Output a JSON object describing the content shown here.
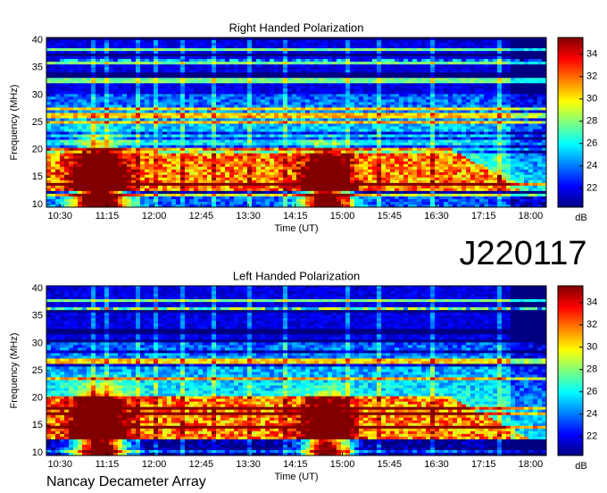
{
  "figure_label": "J220117",
  "footer": "Nancay Decameter Array",
  "chart_data": [
    {
      "type": "spectrogram",
      "title": "Right Handed Polarization",
      "x_label": "Time (UT)",
      "y_label": "Frequency (MHz)",
      "xlim": [
        617,
        1095
      ],
      "xticks": [
        {
          "value": 630,
          "label": "10:30"
        },
        {
          "value": 675,
          "label": "11:15"
        },
        {
          "value": 720,
          "label": "12:00"
        },
        {
          "value": 765,
          "label": "12:45"
        },
        {
          "value": 810,
          "label": "13:30"
        },
        {
          "value": 855,
          "label": "14:15"
        },
        {
          "value": 900,
          "label": "15:00"
        },
        {
          "value": 945,
          "label": "15:45"
        },
        {
          "value": 990,
          "label": "16:30"
        },
        {
          "value": 1035,
          "label": "17:15"
        },
        {
          "value": 1080,
          "label": "18:00"
        }
      ],
      "ylim": [
        9.5,
        40.5
      ],
      "yticks": [
        10,
        15,
        20,
        25,
        30,
        35,
        40
      ],
      "colormap": "jet",
      "colorbar": {
        "label": "dB",
        "lim": [
          20.3,
          35.5
        ],
        "ticks": [
          22,
          24,
          26,
          28,
          30,
          32,
          34
        ]
      }
    },
    {
      "type": "spectrogram",
      "title": "Left Handed Polarization",
      "x_label": "Time (UT)",
      "y_label": "Frequency (MHz)",
      "xlim": [
        617,
        1095
      ],
      "xticks": [
        {
          "value": 630,
          "label": "10:30"
        },
        {
          "value": 675,
          "label": "11:15"
        },
        {
          "value": 720,
          "label": "12:00"
        },
        {
          "value": 765,
          "label": "12:45"
        },
        {
          "value": 810,
          "label": "13:30"
        },
        {
          "value": 855,
          "label": "14:15"
        },
        {
          "value": 900,
          "label": "15:00"
        },
        {
          "value": 945,
          "label": "15:45"
        },
        {
          "value": 990,
          "label": "16:30"
        },
        {
          "value": 1035,
          "label": "17:15"
        },
        {
          "value": 1080,
          "label": "18:00"
        }
      ],
      "ylim": [
        9.5,
        40.5
      ],
      "yticks": [
        10,
        15,
        20,
        25,
        30,
        35,
        40
      ],
      "colormap": "jet",
      "colorbar": {
        "label": "dB",
        "lim": [
          20.3,
          35.5
        ],
        "ticks": [
          22,
          24,
          26,
          28,
          30,
          32,
          34
        ]
      }
    }
  ]
}
